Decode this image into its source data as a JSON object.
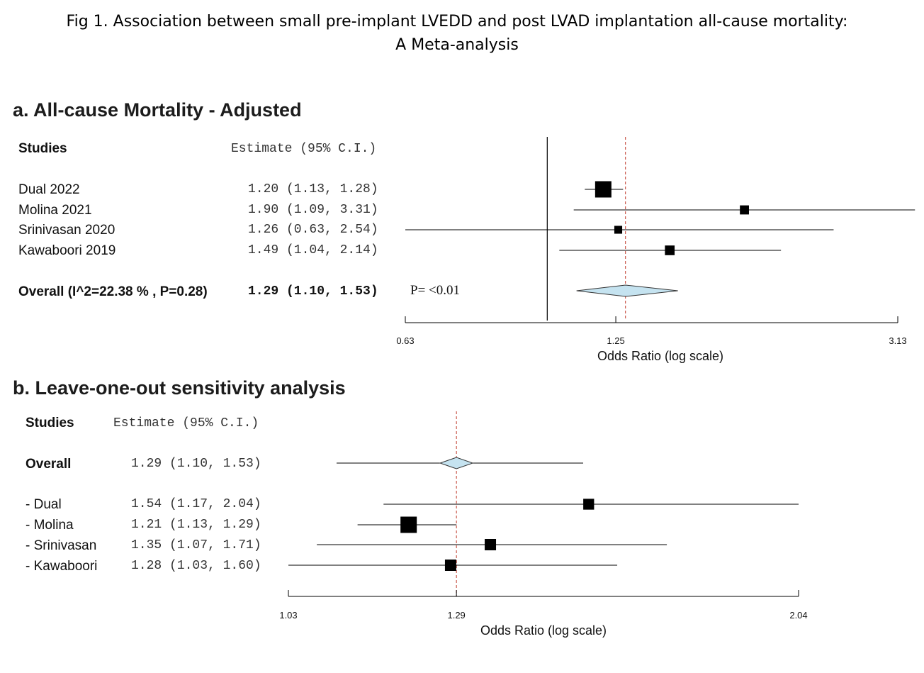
{
  "figure_title_line1": "Fig 1. Association between small pre-implant LVEDD and post LVAD implantation all-cause mortality:",
  "figure_title_line2": "A Meta-analysis",
  "colors": {
    "marker": "#000000",
    "diamond_fill": "#c5e3f0",
    "reference_line": "#c0392b",
    "line": "#000000"
  },
  "chart_data": [
    {
      "type": "forest",
      "title": "a. All-cause Mortality - Adjusted",
      "col_studies": "Studies",
      "col_estimate": "Estimate (95% C.I.)",
      "xlabel": "Odds Ratio (log scale)",
      "x_scale": "log",
      "ticks": [
        0.63,
        1.25,
        3.13
      ],
      "tick_labels": [
        "0.63",
        "1.25",
        "3.13"
      ],
      "xlim": [
        0.63,
        3.13
      ],
      "null_line": 1.0,
      "pooled_line": 1.29,
      "studies": [
        {
          "label": "Dual 2022",
          "est": 1.2,
          "lo": 1.13,
          "hi": 1.28,
          "text": "1.20 (1.13, 1.28)",
          "weight": 1.0
        },
        {
          "label": "Molina 2021",
          "est": 1.9,
          "lo": 1.09,
          "hi": 3.31,
          "text": "1.90 (1.09, 3.31)",
          "weight": 0.4
        },
        {
          "label": "Srinivasan 2020",
          "est": 1.26,
          "lo": 0.63,
          "hi": 2.54,
          "text": "1.26 (0.63, 2.54)",
          "weight": 0.3
        },
        {
          "label": "Kawaboori 2019",
          "est": 1.49,
          "lo": 1.04,
          "hi": 2.14,
          "text": "1.49 (1.04, 2.14)",
          "weight": 0.45
        }
      ],
      "overall": {
        "label": "Overall (I^2=22.38 % , P=0.28)",
        "est": 1.29,
        "lo": 1.1,
        "hi": 1.53,
        "text": "1.29 (1.10, 1.53)"
      },
      "p_text": "P= <0.01"
    },
    {
      "type": "forest",
      "title": "b. Leave-one-out sensitivity analysis",
      "col_studies": "Studies",
      "col_estimate": "Estimate (95% C.I.)",
      "xlabel": "Odds Ratio (log scale)",
      "x_scale": "log",
      "ticks": [
        1.03,
        1.29,
        2.04
      ],
      "tick_labels": [
        "1.03",
        "1.29",
        "2.04"
      ],
      "xlim": [
        1.03,
        2.04
      ],
      "pooled_line": 1.29,
      "overall": {
        "label": "Overall",
        "est": 1.29,
        "lo": 1.1,
        "hi": 1.53,
        "text": "1.29 (1.10, 1.53)"
      },
      "studies": [
        {
          "label": "- Dual",
          "est": 1.54,
          "lo": 1.17,
          "hi": 2.04,
          "text": "1.54 (1.17, 2.04)",
          "weight": 0.45
        },
        {
          "label": "- Molina",
          "est": 1.21,
          "lo": 1.13,
          "hi": 1.29,
          "text": "1.21 (1.13, 1.29)",
          "weight": 1.0
        },
        {
          "label": "- Srinivasan",
          "est": 1.35,
          "lo": 1.07,
          "hi": 1.71,
          "text": "1.35 (1.07, 1.71)",
          "weight": 0.5
        },
        {
          "label": "- Kawaboori",
          "est": 1.28,
          "lo": 1.03,
          "hi": 1.6,
          "text": "1.28 (1.03, 1.60)",
          "weight": 0.5
        }
      ]
    }
  ]
}
